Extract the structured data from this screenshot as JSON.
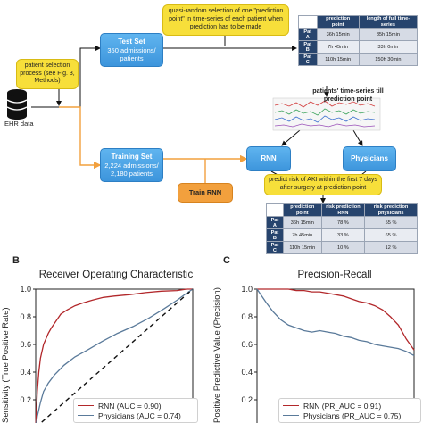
{
  "workflow": {
    "ehr_label": "EHR data",
    "patient_selection": "patient selection process (see Fig. 3, Methods)",
    "test_set": {
      "title": "Test Set",
      "detail": "350 admissions/ patients"
    },
    "training_set": {
      "title": "Training Set",
      "detail": "2,224 admissions/ 2,180 patients"
    },
    "quasi_random_note": "quasi-random selection of one \"prediction point\" in time-series of each patient when prediction has to be made",
    "timeseries_label": "patients' time-series till prediction point",
    "rnn_label": "RNN",
    "physicians_label": "Physicians",
    "train_rnn_label": "Train RNN",
    "predict_note": "predict risk of AKI within the first 7 days after surgery at prediction point",
    "table_top": {
      "headers": [
        "",
        "prediction point",
        "length of full time-series"
      ],
      "rows": [
        [
          "Pat A",
          "36h 15min",
          "85h 15min"
        ],
        [
          "Pat B",
          "7h 45min",
          "33h 0min"
        ],
        [
          "Pat C",
          "110h 15min",
          "150h 30min"
        ]
      ]
    },
    "table_bottom": {
      "headers": [
        "",
        "prediction point",
        "risk prediction RNN",
        "risk prediction physicians"
      ],
      "rows": [
        [
          "Pat A",
          "36h 15min",
          "78 %",
          "55 %"
        ],
        [
          "Pat B",
          "7h 45min",
          "33 %",
          "65 %"
        ],
        [
          "Pat C",
          "110h 15min",
          "10 %",
          "12 %"
        ]
      ]
    },
    "colors": {
      "blue_box": "#4aa3e6",
      "orange_box": "#f2a03d",
      "note_box": "#f7df3a",
      "table_header": "#27446d",
      "rnn_line": "#b2282b",
      "physician_line": "#5a7a9a"
    }
  },
  "panels": [
    {
      "letter": "B",
      "title": "Receiver Operating Characteristic",
      "ylabel": "Sensitivity (True Positive Rate)"
    },
    {
      "letter": "C",
      "title": "Precision-Recall",
      "ylabel": "Positive Predictive Value (Precision)"
    }
  ],
  "chart_data": [
    {
      "type": "line",
      "title": "Receiver Operating Characteristic",
      "xlabel": "",
      "ylabel": "Sensitivity (True Positive Rate)",
      "xlim": [
        0,
        1
      ],
      "ylim": [
        0,
        1
      ],
      "yticks": [
        "0.0",
        "0.2",
        "0.4",
        "0.6",
        "0.8",
        "1.0"
      ],
      "legend": "lower-right",
      "series": [
        {
          "name": "RNN (AUC = 0.90)",
          "color": "#b2282b",
          "style": "solid",
          "x": [
            0,
            0.01,
            0.02,
            0.03,
            0.05,
            0.08,
            0.1,
            0.13,
            0.16,
            0.2,
            0.25,
            0.3,
            0.36,
            0.43,
            0.5,
            0.6,
            0.7,
            0.8,
            0.9,
            0.96,
            1.0
          ],
          "y": [
            0,
            0.26,
            0.4,
            0.5,
            0.6,
            0.68,
            0.72,
            0.77,
            0.82,
            0.85,
            0.88,
            0.9,
            0.92,
            0.94,
            0.95,
            0.96,
            0.975,
            0.985,
            0.99,
            1.0,
            1.0
          ]
        },
        {
          "name": "Physicians (AUC = 0.74)",
          "color": "#5a7a9a",
          "style": "solid",
          "x": [
            0,
            0.01,
            0.03,
            0.05,
            0.08,
            0.12,
            0.18,
            0.25,
            0.33,
            0.42,
            0.52,
            0.62,
            0.72,
            0.82,
            0.9,
            0.96,
            1.0
          ],
          "y": [
            0,
            0.08,
            0.18,
            0.26,
            0.32,
            0.38,
            0.45,
            0.51,
            0.56,
            0.62,
            0.68,
            0.73,
            0.79,
            0.86,
            0.92,
            0.97,
            1.0
          ]
        },
        {
          "name": "",
          "color": "#111111",
          "style": "dashed",
          "x": [
            0,
            1
          ],
          "y": [
            0,
            1
          ]
        }
      ]
    },
    {
      "type": "line",
      "title": "Precision-Recall",
      "xlabel": "",
      "ylabel": "Positive Predictive Value (Precision)",
      "xlim": [
        0,
        1
      ],
      "ylim": [
        0,
        1
      ],
      "yticks": [
        "0.0",
        "0.2",
        "0.4",
        "0.6",
        "0.8",
        "1.0"
      ],
      "legend": "lower-right",
      "series": [
        {
          "name": "RNN (PR_AUC = 0.91)",
          "color": "#b2282b",
          "style": "solid",
          "x": [
            0,
            0.05,
            0.1,
            0.15,
            0.2,
            0.25,
            0.3,
            0.35,
            0.4,
            0.45,
            0.5,
            0.55,
            0.6,
            0.65,
            0.7,
            0.75,
            0.8,
            0.85,
            0.9,
            0.95,
            1.0
          ],
          "y": [
            1.0,
            1.0,
            1.0,
            1.0,
            1.0,
            0.99,
            0.99,
            0.98,
            0.98,
            0.97,
            0.96,
            0.95,
            0.93,
            0.91,
            0.9,
            0.88,
            0.85,
            0.8,
            0.74,
            0.64,
            0.56
          ]
        },
        {
          "name": "Physicians (PR_AUC = 0.75)",
          "color": "#5a7a9a",
          "style": "solid",
          "x": [
            0,
            0.03,
            0.06,
            0.1,
            0.15,
            0.2,
            0.25,
            0.3,
            0.35,
            0.4,
            0.45,
            0.5,
            0.55,
            0.6,
            0.65,
            0.7,
            0.75,
            0.8,
            0.85,
            0.9,
            0.95,
            1.0
          ],
          "y": [
            1.0,
            0.95,
            0.9,
            0.84,
            0.78,
            0.74,
            0.72,
            0.7,
            0.69,
            0.7,
            0.69,
            0.68,
            0.66,
            0.65,
            0.63,
            0.62,
            0.6,
            0.59,
            0.58,
            0.57,
            0.55,
            0.52
          ]
        }
      ]
    }
  ]
}
